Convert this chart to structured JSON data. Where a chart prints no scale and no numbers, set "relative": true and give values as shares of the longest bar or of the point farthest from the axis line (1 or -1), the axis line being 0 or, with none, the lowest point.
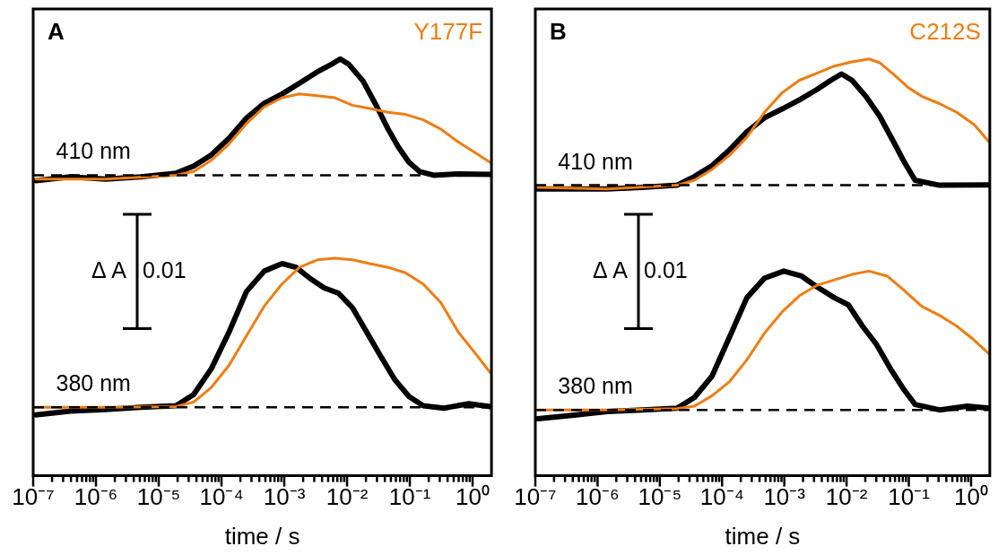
{
  "chart_data": [
    {
      "type": "line",
      "title": "A",
      "xlabel": "time / s",
      "relative": true,
      "log": "x",
      "xlim": [
        1e-07,
        2
      ],
      "xticks": [
        {
          "value": 1e-07,
          "label": "10⁻⁷"
        },
        {
          "value": 2e-07,
          "label": null
        },
        {
          "value": 3e-07,
          "label": null
        },
        {
          "value": 4e-07,
          "label": null
        },
        {
          "value": 5e-07,
          "label": null
        },
        {
          "value": 6e-07,
          "label": null
        },
        {
          "value": 7e-07,
          "label": null
        },
        {
          "value": 8e-07,
          "label": null
        },
        {
          "value": 9e-07,
          "label": null
        },
        {
          "value": 1e-06,
          "label": "10⁻⁶"
        },
        {
          "value": 2e-06,
          "label": null
        },
        {
          "value": 3e-06,
          "label": null
        },
        {
          "value": 4e-06,
          "label": null
        },
        {
          "value": 5e-06,
          "label": null
        },
        {
          "value": 6e-06,
          "label": null
        },
        {
          "value": 7e-06,
          "label": null
        },
        {
          "value": 8e-06,
          "label": null
        },
        {
          "value": 9e-06,
          "label": null
        },
        {
          "value": 1e-05,
          "label": "10⁻⁵"
        },
        {
          "value": 2e-05,
          "label": null
        },
        {
          "value": 3e-05,
          "label": null
        },
        {
          "value": 4e-05,
          "label": null
        },
        {
          "value": 5e-05,
          "label": null
        },
        {
          "value": 6e-05,
          "label": null
        },
        {
          "value": 7e-05,
          "label": null
        },
        {
          "value": 8e-05,
          "label": null
        },
        {
          "value": 9e-05,
          "label": null
        },
        {
          "value": 0.0001,
          "label": "10⁻⁴"
        },
        {
          "value": 0.0002,
          "label": null
        },
        {
          "value": 0.0003,
          "label": null
        },
        {
          "value": 0.0004,
          "label": null
        },
        {
          "value": 0.0005,
          "label": null
        },
        {
          "value": 0.0006,
          "label": null
        },
        {
          "value": 0.0007,
          "label": null
        },
        {
          "value": 0.0008,
          "label": null
        },
        {
          "value": 0.0009,
          "label": null
        },
        {
          "value": 0.001,
          "label": "10⁻³"
        },
        {
          "value": 0.002,
          "label": null
        },
        {
          "value": 0.003,
          "label": null
        },
        {
          "value": 0.004,
          "label": null
        },
        {
          "value": 0.005,
          "label": null
        },
        {
          "value": 0.006,
          "label": null
        },
        {
          "value": 0.007,
          "label": null
        },
        {
          "value": 0.008,
          "label": null
        },
        {
          "value": 0.009,
          "label": null
        },
        {
          "value": 0.01,
          "label": "10⁻²"
        },
        {
          "value": 0.02,
          "label": null
        },
        {
          "value": 0.03,
          "label": null
        },
        {
          "value": 0.04,
          "label": null
        },
        {
          "value": 0.05,
          "label": null
        },
        {
          "value": 0.06,
          "label": null
        },
        {
          "value": 0.07,
          "label": null
        },
        {
          "value": 0.08,
          "label": null
        },
        {
          "value": 0.09,
          "label": null
        },
        {
          "value": 0.1,
          "label": "10⁻¹"
        },
        {
          "value": 0.2,
          "label": null
        },
        {
          "value": 0.3,
          "label": null
        },
        {
          "value": 0.4,
          "label": null
        },
        {
          "value": 0.5,
          "label": null
        },
        {
          "value": 0.6,
          "label": null
        },
        {
          "value": 0.7,
          "label": null
        },
        {
          "value": 0.8,
          "label": null
        },
        {
          "value": 0.9,
          "label": null
        },
        {
          "value": 1,
          "label": "10⁰"
        }
      ],
      "series": [
        {
          "color": "#000000",
          "x": [
            1.1e-07,
            3.9e-07,
            1.42e-06,
            5.2e-06,
            1.89e-05,
            3.6e-05,
            6.9e-05,
            0.000132,
            0.00025,
            0.00048,
            0.00092,
            0.00175,
            0.00335,
            0.0056,
            0.0078,
            0.0107,
            0.018,
            0.03,
            0.045,
            0.066,
            0.097,
            0.143,
            0.24,
            0.59,
            1.9
          ],
          "values": [
            0.708,
            0.717,
            0.712,
            0.717,
            0.726,
            0.743,
            0.77,
            0.81,
            0.858,
            0.894,
            0.916,
            0.942,
            0.969,
            0.987,
            1,
            0.987,
            0.947,
            0.885,
            0.832,
            0.788,
            0.752,
            0.73,
            0.721,
            0.724,
            0.723
          ]
        },
        {
          "name": "Y177F",
          "color": "#ee7d11",
          "x": [
            1.1e-07,
            1.42e-06,
            1.89e-05,
            3.6e-05,
            6.9e-05,
            0.000132,
            0.00025,
            0.00048,
            0.00092,
            0.00175,
            0.00335,
            0.0064,
            0.0122,
            0.023,
            0.045,
            0.085,
            0.163,
            0.31,
            0.59,
            1.9
          ],
          "values": [
            0.712,
            0.712,
            0.721,
            0.73,
            0.757,
            0.796,
            0.845,
            0.885,
            0.907,
            0.916,
            0.912,
            0.907,
            0.889,
            0.881,
            0.872,
            0.867,
            0.854,
            0.832,
            0.801,
            0.752
          ]
        },
        {
          "color": "#000000",
          "x": [
            1.1e-07,
            3.9e-07,
            1.42e-06,
            5.2e-06,
            1.89e-05,
            3.6e-05,
            6.9e-05,
            0.000132,
            0.00025,
            0.00048,
            0.00092,
            0.00154,
            0.0026,
            0.0043,
            0.0073,
            0.0122,
            0.0205,
            0.034,
            0.058,
            0.097,
            0.163,
            0.35,
            0.87,
            1.9
          ],
          "values": [
            0.146,
            0.155,
            0.159,
            0.164,
            0.168,
            0.195,
            0.257,
            0.345,
            0.442,
            0.491,
            0.509,
            0.5,
            0.473,
            0.451,
            0.438,
            0.403,
            0.345,
            0.288,
            0.23,
            0.19,
            0.168,
            0.162,
            0.173,
            0.166
          ]
        },
        {
          "color": "#ee7d11",
          "x": [
            1.1e-07,
            1.42e-06,
            1.89e-05,
            3.6e-05,
            6.9e-05,
            0.000132,
            0.00025,
            0.00048,
            0.00092,
            0.00175,
            0.00335,
            0.0064,
            0.0122,
            0.023,
            0.045,
            0.085,
            0.163,
            0.31,
            0.59,
            1.13,
            1.9
          ],
          "values": [
            0.164,
            0.164,
            0.166,
            0.177,
            0.212,
            0.265,
            0.336,
            0.407,
            0.46,
            0.5,
            0.518,
            0.522,
            0.518,
            0.509,
            0.5,
            0.487,
            0.46,
            0.416,
            0.345,
            0.292,
            0.248
          ]
        }
      ],
      "ref_lines": [
        {
          "axis": "y",
          "value": 0.721,
          "label": "410 nm",
          "color": "#000000",
          "line_style": "dashed"
        },
        {
          "axis": "y",
          "value": 0.164,
          "label": "380 nm",
          "color": "#000000",
          "line_style": "dashed"
        }
      ],
      "annotations": [
        "Δ A",
        "0.01"
      ]
    },
    {
      "type": "line",
      "title": "B",
      "xlabel": "time / s",
      "relative": true,
      "log": "x",
      "xlim": [
        1e-07,
        2
      ],
      "xticks": [
        {
          "value": 1e-07,
          "label": "10⁻⁷"
        },
        {
          "value": 2e-07,
          "label": null
        },
        {
          "value": 3e-07,
          "label": null
        },
        {
          "value": 4e-07,
          "label": null
        },
        {
          "value": 5e-07,
          "label": null
        },
        {
          "value": 6e-07,
          "label": null
        },
        {
          "value": 7e-07,
          "label": null
        },
        {
          "value": 8e-07,
          "label": null
        },
        {
          "value": 9e-07,
          "label": null
        },
        {
          "value": 1e-06,
          "label": "10⁻⁶"
        },
        {
          "value": 2e-06,
          "label": null
        },
        {
          "value": 3e-06,
          "label": null
        },
        {
          "value": 4e-06,
          "label": null
        },
        {
          "value": 5e-06,
          "label": null
        },
        {
          "value": 6e-06,
          "label": null
        },
        {
          "value": 7e-06,
          "label": null
        },
        {
          "value": 8e-06,
          "label": null
        },
        {
          "value": 9e-06,
          "label": null
        },
        {
          "value": 1e-05,
          "label": "10⁻⁵"
        },
        {
          "value": 2e-05,
          "label": null
        },
        {
          "value": 3e-05,
          "label": null
        },
        {
          "value": 4e-05,
          "label": null
        },
        {
          "value": 5e-05,
          "label": null
        },
        {
          "value": 6e-05,
          "label": null
        },
        {
          "value": 7e-05,
          "label": null
        },
        {
          "value": 8e-05,
          "label": null
        },
        {
          "value": 9e-05,
          "label": null
        },
        {
          "value": 0.0001,
          "label": "10⁻⁴"
        },
        {
          "value": 0.0002,
          "label": null
        },
        {
          "value": 0.0003,
          "label": null
        },
        {
          "value": 0.0004,
          "label": null
        },
        {
          "value": 0.0005,
          "label": null
        },
        {
          "value": 0.0006,
          "label": null
        },
        {
          "value": 0.0007,
          "label": null
        },
        {
          "value": 0.0008,
          "label": null
        },
        {
          "value": 0.0009,
          "label": null
        },
        {
          "value": 0.001,
          "label": "10⁻³"
        },
        {
          "value": 0.002,
          "label": null
        },
        {
          "value": 0.003,
          "label": null
        },
        {
          "value": 0.004,
          "label": null
        },
        {
          "value": 0.005,
          "label": null
        },
        {
          "value": 0.006,
          "label": null
        },
        {
          "value": 0.007,
          "label": null
        },
        {
          "value": 0.008,
          "label": null
        },
        {
          "value": 0.009,
          "label": null
        },
        {
          "value": 0.01,
          "label": "10⁻²"
        },
        {
          "value": 0.02,
          "label": null
        },
        {
          "value": 0.03,
          "label": null
        },
        {
          "value": 0.04,
          "label": null
        },
        {
          "value": 0.05,
          "label": null
        },
        {
          "value": 0.06,
          "label": null
        },
        {
          "value": 0.07,
          "label": null
        },
        {
          "value": 0.08,
          "label": null
        },
        {
          "value": 0.09,
          "label": null
        },
        {
          "value": 0.1,
          "label": "10⁻¹"
        },
        {
          "value": 0.2,
          "label": null
        },
        {
          "value": 0.3,
          "label": null
        },
        {
          "value": 0.4,
          "label": null
        },
        {
          "value": 0.5,
          "label": null
        },
        {
          "value": 0.6,
          "label": null
        },
        {
          "value": 0.7,
          "label": null
        },
        {
          "value": 0.8,
          "label": null
        },
        {
          "value": 0.9,
          "label": null
        },
        {
          "value": 1,
          "label": "10⁰"
        }
      ],
      "series": [
        {
          "color": "#000000",
          "x": [
            1.1e-07,
            3.9e-07,
            1.42e-06,
            5.2e-06,
            1.89e-05,
            3.6e-05,
            6.9e-05,
            0.000132,
            0.00025,
            0.00048,
            0.00092,
            0.00175,
            0.00335,
            0.0056,
            0.0083,
            0.0122,
            0.0205,
            0.034,
            0.058,
            0.085,
            0.126,
            0.31,
            2.0
          ],
          "values": [
            0.688,
            0.688,
            0.688,
            0.692,
            0.697,
            0.718,
            0.744,
            0.782,
            0.825,
            0.859,
            0.88,
            0.902,
            0.927,
            0.949,
            0.964,
            0.949,
            0.91,
            0.863,
            0.799,
            0.752,
            0.709,
            0.697,
            0.698
          ]
        },
        {
          "name": "C212S",
          "color": "#ee7d11",
          "x": [
            1.1e-07,
            1.42e-06,
            1.89e-05,
            3.6e-05,
            6.9e-05,
            0.000132,
            0.00025,
            0.00048,
            0.00092,
            0.00175,
            0.00335,
            0.0064,
            0.0122,
            0.023,
            0.034,
            0.058,
            0.097,
            0.163,
            0.31,
            0.59,
            1.13,
            2.0
          ],
          "values": [
            0.692,
            0.688,
            0.697,
            0.709,
            0.735,
            0.769,
            0.812,
            0.872,
            0.919,
            0.949,
            0.966,
            0.983,
            0.993,
            1,
            0.991,
            0.962,
            0.932,
            0.91,
            0.893,
            0.872,
            0.842,
            0.799
          ]
        },
        {
          "color": "#000000",
          "x": [
            1.1e-07,
            3.9e-07,
            1.42e-06,
            5.2e-06,
            1.89e-05,
            3.6e-05,
            6.9e-05,
            0.000132,
            0.00025,
            0.00048,
            0.00098,
            0.0019,
            0.00335,
            0.0064,
            0.0107,
            0.018,
            0.03,
            0.051,
            0.085,
            0.126,
            0.31,
            0.87,
            2.0
          ],
          "values": [
            0.137,
            0.145,
            0.154,
            0.158,
            0.162,
            0.188,
            0.239,
            0.333,
            0.427,
            0.474,
            0.491,
            0.479,
            0.453,
            0.427,
            0.41,
            0.359,
            0.316,
            0.256,
            0.205,
            0.171,
            0.158,
            0.167,
            0.162
          ]
        },
        {
          "color": "#ee7d11",
          "x": [
            1.1e-07,
            1.42e-06,
            1.89e-05,
            3.6e-05,
            6.9e-05,
            0.000132,
            0.00025,
            0.00048,
            0.00092,
            0.00175,
            0.00335,
            0.0064,
            0.0122,
            0.023,
            0.045,
            0.085,
            0.163,
            0.31,
            0.59,
            1.13,
            2.0
          ],
          "values": [
            0.158,
            0.158,
            0.161,
            0.167,
            0.192,
            0.226,
            0.278,
            0.342,
            0.393,
            0.432,
            0.457,
            0.47,
            0.483,
            0.491,
            0.479,
            0.444,
            0.406,
            0.385,
            0.359,
            0.325,
            0.291
          ]
        }
      ],
      "ref_lines": [
        {
          "axis": "y",
          "value": 0.697,
          "label": "410 nm",
          "color": "#000000",
          "line_style": "dashed"
        },
        {
          "axis": "y",
          "value": 0.158,
          "label": "380 nm",
          "color": "#000000",
          "line_style": "dashed"
        }
      ],
      "annotations": [
        "Δ A",
        "0.01"
      ]
    }
  ]
}
